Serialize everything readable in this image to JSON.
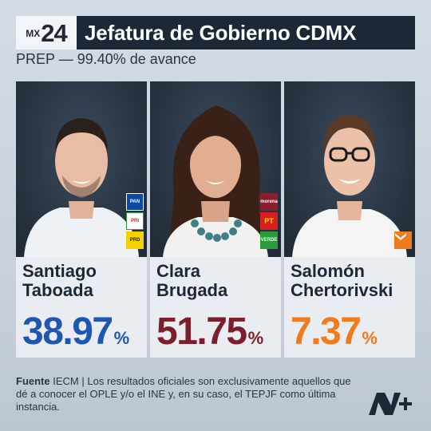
{
  "header": {
    "badge_prefix": "MX",
    "badge_number": "24",
    "title": "Jefatura de Gobierno CDMX",
    "bg_color": "#1c2836"
  },
  "subtitle": "PREP — 99.40% de avance",
  "candidates": [
    {
      "name_line1": "Santiago",
      "name_line2": "Taboada",
      "percent": "38.97",
      "percent_sign": "%",
      "color": "#1f56b0",
      "party_logos": [
        {
          "label": "PAN",
          "color": "#0a4aa6",
          "icon": "pan-logo-icon"
        },
        {
          "label": "PRI",
          "color": "#ffffff",
          "icon": "pri-logo-icon"
        },
        {
          "label": "PRD",
          "color": "#f6d100",
          "icon": "prd-logo-icon"
        }
      ]
    },
    {
      "name_line1": "Clara",
      "name_line2": "Brugada",
      "percent": "51.75",
      "percent_sign": "%",
      "color": "#7a1f2b",
      "party_logos": [
        {
          "label": "morena",
          "color": "#8a1e2c",
          "icon": "morena-logo-icon"
        },
        {
          "label": "PT",
          "color": "#d81e1e",
          "icon": "pt-logo-icon"
        },
        {
          "label": "VERDE",
          "color": "#2a9a3a",
          "icon": "verde-logo-icon"
        }
      ]
    },
    {
      "name_line1": "Salomón",
      "name_line2": "Chertorivski",
      "percent": "7.37",
      "percent_sign": "%",
      "color": "#f07a1c",
      "party_logos": [
        {
          "label": "MC",
          "color": "#f07a1c",
          "icon": "mc-logo-icon"
        }
      ]
    }
  ],
  "footer": {
    "source_label": "Fuente",
    "source_value": "IECM",
    "separator": "|",
    "text": "Los resultados oficiales son exclusivamente aquellos que dé a conocer el OPLE y/o el INE y, en su caso, el TEPJF como última instancia."
  }
}
